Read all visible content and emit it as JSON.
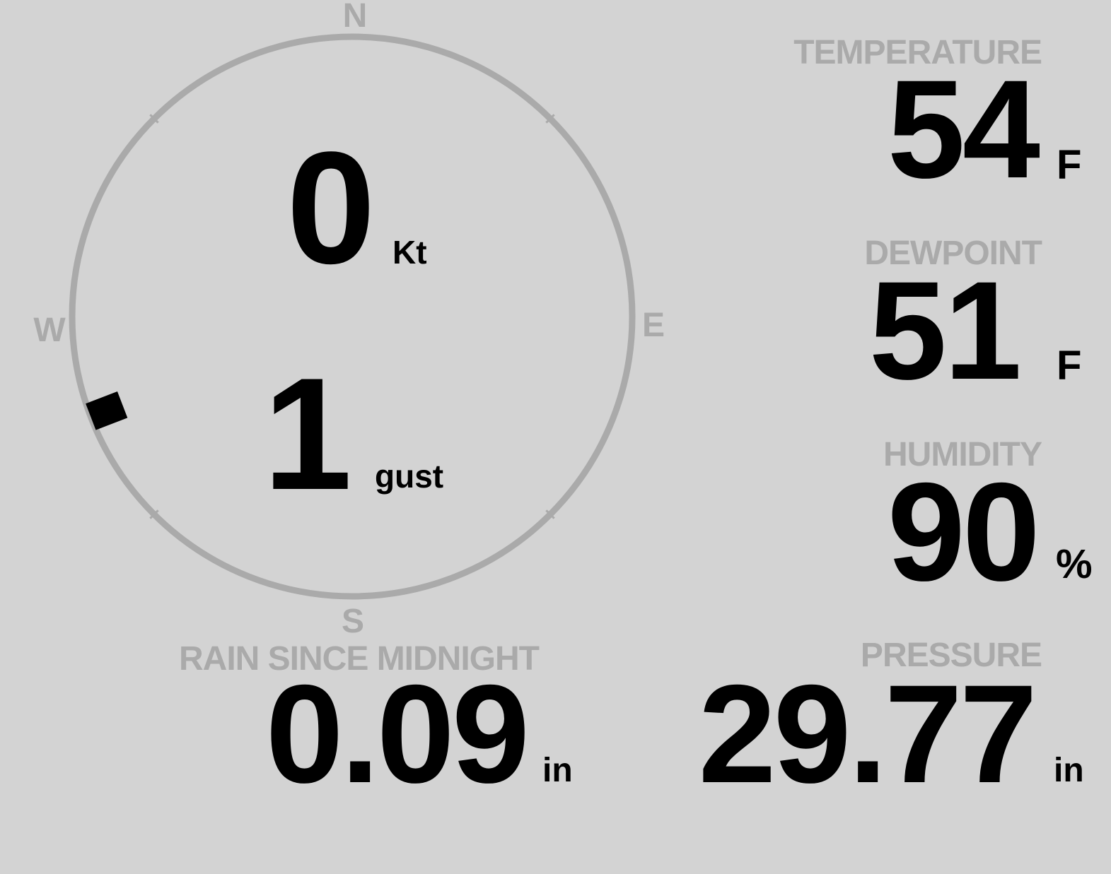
{
  "colors": {
    "background": "#d3d3d3",
    "label": "#aaaaaa",
    "value": "#000000"
  },
  "wind": {
    "compass": {
      "n": "N",
      "e": "E",
      "s": "S",
      "w": "W"
    },
    "direction_deg": 249,
    "speed": "0",
    "speed_unit": "Kt",
    "gust": "1",
    "gust_unit": "gust"
  },
  "temperature": {
    "label": "TEMPERATURE",
    "value": "54",
    "unit": "F"
  },
  "dewpoint": {
    "label": "DEWPOINT",
    "value": "51",
    "unit": "F"
  },
  "humidity": {
    "label": "HUMIDITY",
    "value": "90",
    "unit": "%"
  },
  "pressure": {
    "label": "PRESSURE",
    "value": "29.77",
    "unit": "in"
  },
  "rain": {
    "label": "RAIN SINCE MIDNIGHT",
    "value": "0.09",
    "unit": "in"
  }
}
